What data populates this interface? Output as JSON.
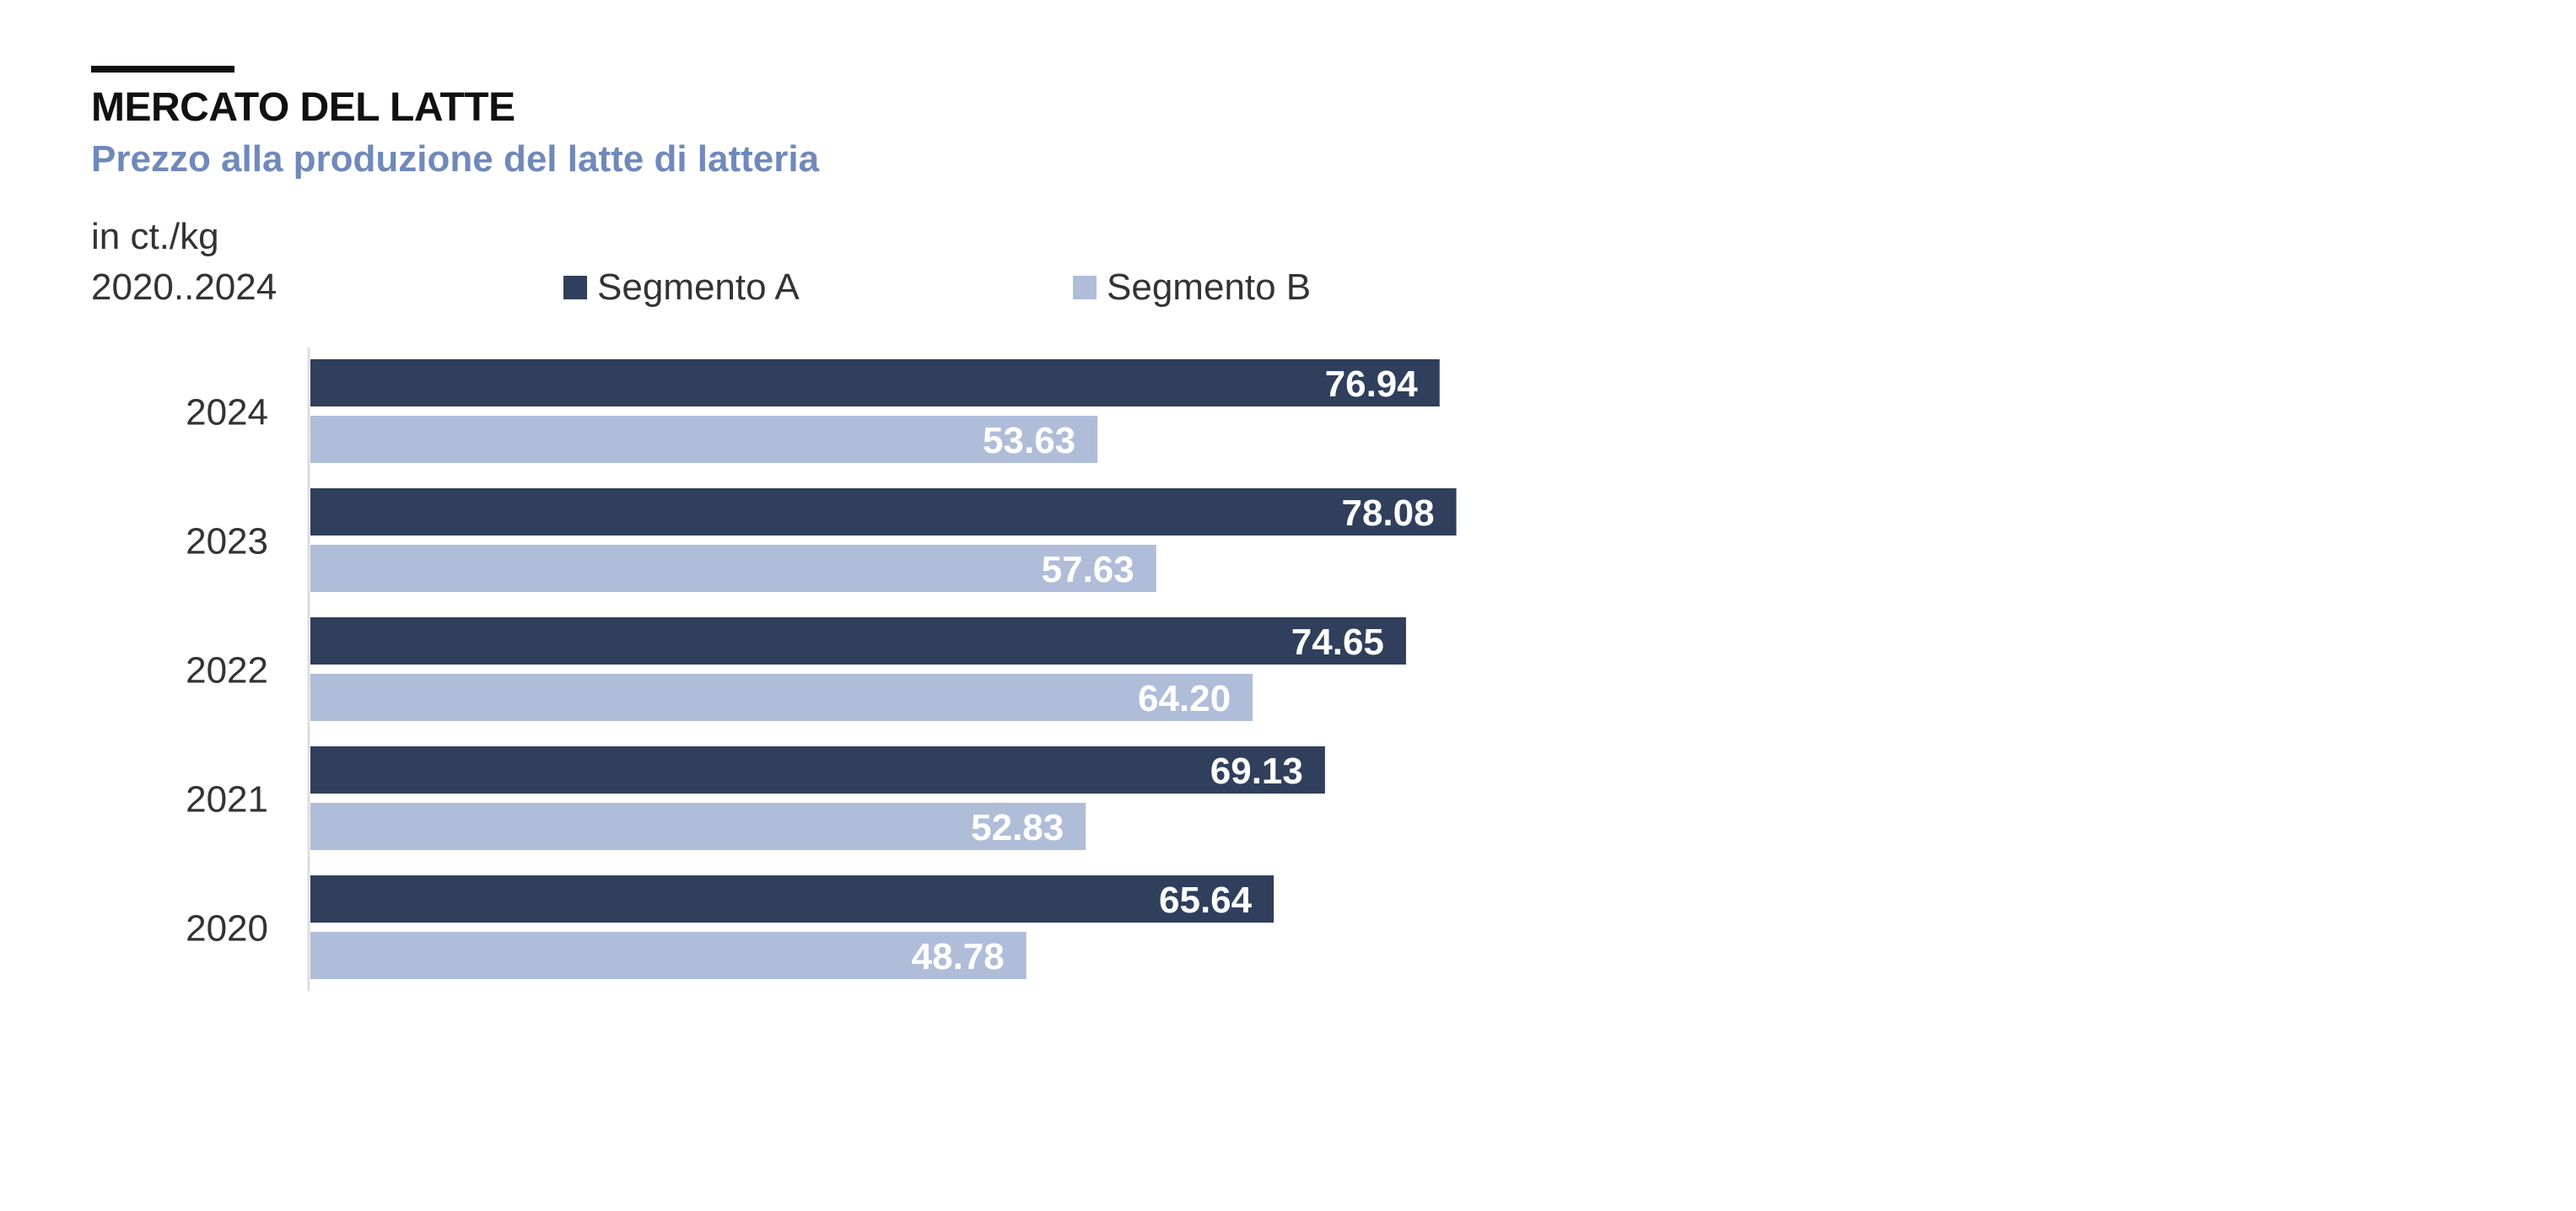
{
  "header": {
    "title": "MERCATO DEL LATTE",
    "subtitle": "Prezzo alla produzione del latte di latteria",
    "unit": "in ct./kg",
    "period": "2020..2024"
  },
  "colors": {
    "series_a": "#2f3f5c",
    "series_b": "#b0bdd9",
    "label": "#ffffff",
    "axis": "#dddddd"
  },
  "chart_data": {
    "type": "bar",
    "orientation": "horizontal",
    "title": "MERCATO DEL LATTE",
    "subtitle": "Prezzo alla produzione del latte di latteria",
    "categories": [
      "2024",
      "2023",
      "2022",
      "2021",
      "2020"
    ],
    "series": [
      {
        "name": "Segmento A",
        "values": [
          76.94,
          78.08,
          74.65,
          69.13,
          65.64
        ]
      },
      {
        "name": "Segmento B",
        "values": [
          53.63,
          57.63,
          64.2,
          52.83,
          48.78
        ]
      }
    ],
    "xlim": [
      0,
      100
    ],
    "grid": false,
    "legend": "top",
    "data_labels": true
  }
}
